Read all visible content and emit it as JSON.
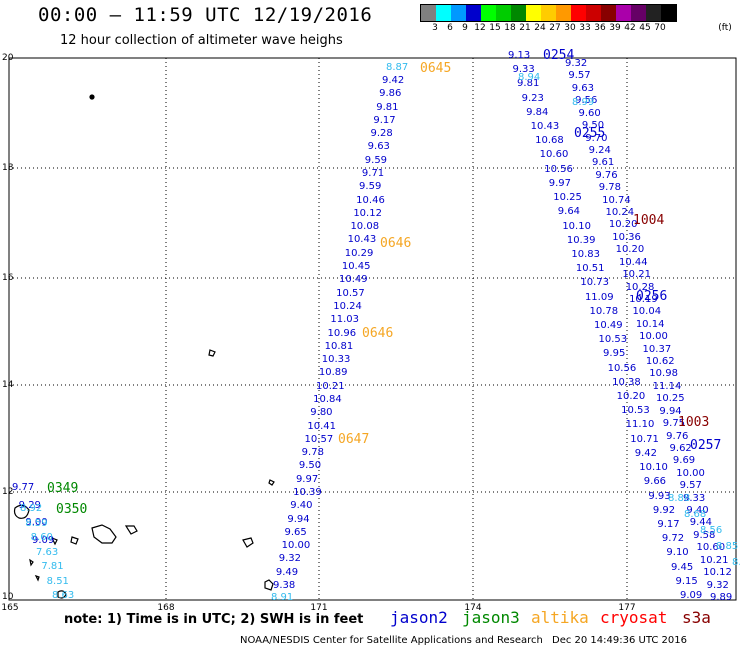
{
  "title": "00:00 – 11:59 UTC 12/19/2016",
  "subtitle": "12 hour collection of altimeter wave heighs",
  "colorbar": {
    "unit_label": "(ft)",
    "labels": [
      "3",
      "6",
      "9",
      "12",
      "15",
      "18",
      "21",
      "24",
      "27",
      "30",
      "33",
      "36",
      "39",
      "42",
      "45",
      "70"
    ],
    "colors": [
      "#808080",
      "#00ffff",
      "#0099ff",
      "#0000cc",
      "#00ff00",
      "#00cc00",
      "#008800",
      "#ffff00",
      "#ffcc00",
      "#ff9900",
      "#ff0000",
      "#cc0000",
      "#880000",
      "#aa00aa",
      "#660066",
      "#222222",
      "#000000"
    ]
  },
  "map": {
    "lat_labels": [
      "20",
      "18",
      "16",
      "14",
      "12",
      "10"
    ],
    "lon_labels": [
      "165",
      "168",
      "171",
      "174",
      "177"
    ]
  },
  "tracks": {
    "altika": {
      "color": "#f5a623",
      "passes": [
        "0645",
        "0646",
        "0646",
        "0647"
      ],
      "values": [
        "9.42",
        "9.86",
        "9.81",
        "9.17",
        "9.28",
        "9.63",
        "9.59",
        "9.71",
        "9.59",
        "10.46",
        "10.12",
        "10.08",
        "10.43",
        "10.29",
        "10.45",
        "10.49",
        "10.57",
        "10.24",
        "11.03",
        "10.96",
        "10.81",
        "10.33",
        "10.89",
        "10.21",
        "10.84",
        "9.80",
        "10.41",
        "10.57",
        "9.78",
        "9.50",
        "9.97",
        "10.39",
        "9.40",
        "9.94",
        "9.65",
        "10.00",
        "9.32",
        "9.49",
        "9.38"
      ],
      "light_values": [
        "8.87",
        "8.91"
      ]
    },
    "jason2_left": {
      "color": "#0000cc",
      "passes": [
        "0254",
        "0255"
      ],
      "values": [
        "9.13",
        "9.33",
        "9.81",
        "9.23",
        "9.84",
        "10.43",
        "10.68",
        "10.60",
        "10.56",
        "9.97",
        "10.25",
        "9.64",
        "10.10",
        "10.39",
        "10.83",
        "10.51",
        "10.73",
        "11.09",
        "10.78",
        "10.49",
        "10.53",
        "9.95",
        "10.56",
        "10.38",
        "10.20",
        "10.53",
        "11.10",
        "10.71",
        "9.42",
        "10.10",
        "9.66",
        "9.93",
        "9.92",
        "9.17",
        "9.72",
        "9.10",
        "9.45",
        "9.15",
        "9.09"
      ],
      "light_values": [
        "8.94"
      ]
    },
    "jason2_right": {
      "color": "#0000cc",
      "passes": [
        "0256",
        "0257"
      ],
      "values": [
        "9.32",
        "9.57",
        "9.63",
        "9.56",
        "9.60",
        "9.50",
        "9.70",
        "9.24",
        "9.61",
        "9.76",
        "9.78",
        "10.74",
        "10.24",
        "10.20",
        "10.36",
        "10.20",
        "10.44",
        "10.21",
        "10.28",
        "10.19",
        "10.04",
        "10.14",
        "10.00",
        "10.37",
        "10.62",
        "10.98",
        "11.14",
        "10.25",
        "9.94",
        "9.75",
        "9.76",
        "9.62",
        "9.69",
        "10.00",
        "9.57",
        "9.33",
        "9.40",
        "9.44",
        "9.58",
        "10.60",
        "10.21",
        "10.12",
        "9.32",
        "9.89"
      ],
      "light_values": [
        "8.99",
        "8.88",
        "8.68",
        "8.56",
        "8.85",
        "8.97",
        "8.97"
      ]
    },
    "jason3": {
      "color": "#008800",
      "passes": [
        "0349",
        "0350"
      ],
      "values": [
        "9.77",
        "9.29",
        "9.00",
        "9.09"
      ],
      "light_values": [
        "8.92",
        "8.59",
        "8.60",
        "7.63",
        "7.81",
        "8.51",
        "8.63"
      ]
    },
    "cryosat": {
      "color": "#880000",
      "passes": [
        "1004",
        "1003"
      ]
    }
  },
  "note": "note: 1) Time is in UTC; 2) SWH is in feet",
  "legend": {
    "jason2": "jason2",
    "jason3": "jason3",
    "altika": "altika",
    "cryosat": "cryosat",
    "s3a": "s3a"
  },
  "credit": "NOAA/NESDIS Center for Satellite Applications and Research",
  "timestamp": "Dec 20 14:49:36 UTC 2016"
}
